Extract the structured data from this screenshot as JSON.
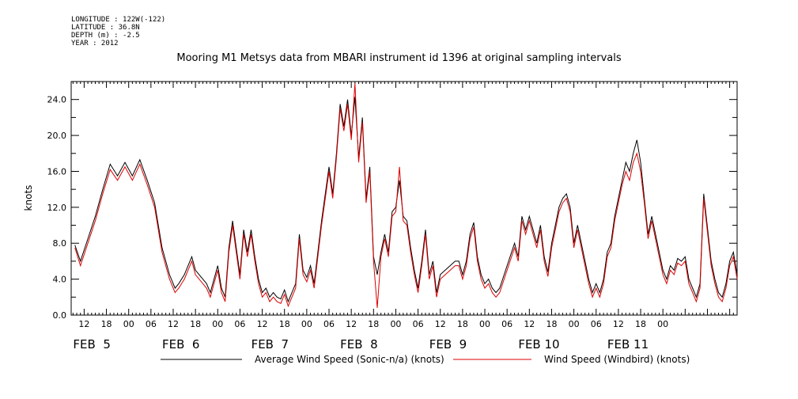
{
  "meta": {
    "longitude": "LONGITUDE : 122W(-122)",
    "latitude": "LATITUDE : 36.8N",
    "depth": "DEPTH (m) : -2.5",
    "year": "YEAR : 2012"
  },
  "chart_data": {
    "type": "line",
    "title": "Mooring M1 Metsys data from MBARI instrument id 1396 at original sampling intervals",
    "ylabel": "knots",
    "xlabel": "",
    "ylim": [
      0,
      26
    ],
    "xlim_hours": [
      -15.5,
      164
    ],
    "y_ticks": [
      "0.0",
      "4.0",
      "8.0",
      "12.0",
      "16.0",
      "20.0",
      "24.0"
    ],
    "hour_ticks": [
      "12",
      "18",
      "00",
      "06",
      "12",
      "18",
      "00",
      "06",
      "12",
      "18",
      "00",
      "06",
      "12",
      "18",
      "00",
      "06",
      "12",
      "18",
      "00",
      "06",
      "12",
      "18",
      "00",
      "06",
      "12",
      "18",
      "00"
    ],
    "day_labels": [
      "FEB  5",
      "FEB  6",
      "FEB  7",
      "FEB  8",
      "FEB  9",
      "FEB 10",
      "FEB 11"
    ],
    "legend_placement": "bottom",
    "series": [
      {
        "name": "Average Wind Speed (Sonic-n/a) (knots)",
        "color": "#000000",
        "points": [
          [
            -14.5,
            7.8
          ],
          [
            -13,
            6
          ],
          [
            -11,
            8.5
          ],
          [
            -9,
            11
          ],
          [
            -7,
            14
          ],
          [
            -5,
            16.8
          ],
          [
            -3,
            15.5
          ],
          [
            -1,
            17
          ],
          [
            1,
            15.5
          ],
          [
            3,
            17.3
          ],
          [
            5,
            15
          ],
          [
            7,
            12.5
          ],
          [
            9,
            7.5
          ],
          [
            11,
            4.5
          ],
          [
            12.5,
            3
          ],
          [
            13.5,
            3.5
          ],
          [
            15,
            4.5
          ],
          [
            17,
            6.5
          ],
          [
            18,
            5
          ],
          [
            20,
            4
          ],
          [
            21,
            3.5
          ],
          [
            22,
            2.5
          ],
          [
            23,
            4
          ],
          [
            24,
            5.5
          ],
          [
            25,
            3
          ],
          [
            26,
            2
          ],
          [
            27,
            7.5
          ],
          [
            28,
            10.5
          ],
          [
            29,
            7.5
          ],
          [
            30,
            4.5
          ],
          [
            31,
            9.5
          ],
          [
            32,
            7
          ],
          [
            33,
            9.5
          ],
          [
            34,
            6.5
          ],
          [
            35,
            4
          ],
          [
            36,
            2.5
          ],
          [
            37,
            3
          ],
          [
            38,
            2
          ],
          [
            39,
            2.5
          ],
          [
            40,
            2
          ],
          [
            41,
            1.8
          ],
          [
            42,
            2.8
          ],
          [
            43,
            1.5
          ],
          [
            44,
            2.5
          ],
          [
            45,
            3.5
          ],
          [
            46,
            9
          ],
          [
            47,
            5
          ],
          [
            48,
            4.2
          ],
          [
            49,
            5.5
          ],
          [
            50,
            3.5
          ],
          [
            51,
            7
          ],
          [
            52,
            10.5
          ],
          [
            53,
            13.5
          ],
          [
            54,
            16.5
          ],
          [
            55,
            13.5
          ],
          [
            56,
            18
          ],
          [
            57,
            23.5
          ],
          [
            58,
            21
          ],
          [
            59,
            24
          ],
          [
            60,
            20
          ],
          [
            61,
            24.3
          ],
          [
            62,
            17.5
          ],
          [
            63,
            22
          ],
          [
            64,
            13
          ],
          [
            65,
            16.5
          ],
          [
            66,
            6.5
          ],
          [
            67,
            4.5
          ],
          [
            68,
            7
          ],
          [
            69,
            9
          ],
          [
            70,
            7
          ],
          [
            71,
            11.5
          ],
          [
            72,
            12
          ],
          [
            73,
            15
          ],
          [
            74,
            11
          ],
          [
            75,
            10.5
          ],
          [
            76,
            7.5
          ],
          [
            77,
            5
          ],
          [
            78,
            3
          ],
          [
            79,
            6
          ],
          [
            80,
            9.5
          ],
          [
            81,
            4.5
          ],
          [
            82,
            6
          ],
          [
            83,
            2.5
          ],
          [
            84,
            4.5
          ],
          [
            88,
            6
          ],
          [
            89,
            6
          ],
          [
            90,
            4.5
          ],
          [
            91,
            6
          ],
          [
            92,
            9
          ],
          [
            93,
            10.3
          ],
          [
            94,
            6.5
          ],
          [
            95,
            4.5
          ],
          [
            96,
            3.5
          ],
          [
            97,
            4
          ],
          [
            98,
            3
          ],
          [
            99,
            2.5
          ],
          [
            100,
            3
          ],
          [
            104,
            8
          ],
          [
            105,
            6.5
          ],
          [
            106,
            11
          ],
          [
            107,
            9.5
          ],
          [
            108,
            11
          ],
          [
            109,
            9.5
          ],
          [
            110,
            8
          ],
          [
            111,
            10
          ],
          [
            112,
            6.5
          ],
          [
            113,
            4.8
          ],
          [
            114,
            8
          ],
          [
            115,
            10
          ],
          [
            116,
            12
          ],
          [
            117,
            13
          ],
          [
            118,
            13.5
          ],
          [
            119,
            12
          ],
          [
            120,
            8
          ],
          [
            121,
            10
          ],
          [
            122,
            8
          ],
          [
            123,
            6
          ],
          [
            124,
            4
          ],
          [
            125,
            2.5
          ],
          [
            126,
            3.5
          ],
          [
            127,
            2.5
          ],
          [
            128,
            4
          ],
          [
            129,
            7
          ],
          [
            130,
            8
          ],
          [
            131,
            11
          ],
          [
            132,
            13
          ],
          [
            133,
            15
          ],
          [
            134,
            17
          ],
          [
            135,
            16
          ],
          [
            136,
            18
          ],
          [
            137,
            19.5
          ],
          [
            138,
            17
          ],
          [
            139,
            13
          ],
          [
            140,
            9
          ],
          [
            141,
            11
          ],
          [
            142,
            9
          ],
          [
            143,
            7
          ],
          [
            144,
            5
          ],
          [
            145,
            4
          ],
          [
            146,
            5.5
          ],
          [
            147,
            5
          ],
          [
            148,
            6.3
          ],
          [
            149,
            6
          ],
          [
            150,
            6.5
          ],
          [
            151,
            4
          ],
          [
            152,
            3
          ],
          [
            153,
            2
          ],
          [
            154,
            3.5
          ],
          [
            155,
            13.5
          ],
          [
            157,
            6
          ],
          [
            158,
            4
          ],
          [
            159,
            2.5
          ],
          [
            160,
            2
          ],
          [
            161,
            3.5
          ],
          [
            162,
            6
          ],
          [
            163,
            7
          ],
          [
            164,
            4.5
          ]
        ]
      },
      {
        "name": "Wind Speed (Windbird) (knots)",
        "color": "#dd0000",
        "points": [
          [
            -14.5,
            7.5
          ],
          [
            -13,
            5.5
          ],
          [
            -11,
            8
          ],
          [
            -9,
            10.5
          ],
          [
            -7,
            13.5
          ],
          [
            -5,
            16.2
          ],
          [
            -3,
            15
          ],
          [
            -1,
            16.5
          ],
          [
            1,
            15
          ],
          [
            3,
            16.8
          ],
          [
            5,
            14.5
          ],
          [
            7,
            12
          ],
          [
            9,
            7
          ],
          [
            11,
            4
          ],
          [
            12.5,
            2.5
          ],
          [
            13.5,
            3
          ],
          [
            15,
            4
          ],
          [
            17,
            6
          ],
          [
            18,
            4.5
          ],
          [
            20,
            3.5
          ],
          [
            21,
            3
          ],
          [
            22,
            2
          ],
          [
            23,
            3.5
          ],
          [
            24,
            5
          ],
          [
            25,
            2.5
          ],
          [
            26,
            1.5
          ],
          [
            27,
            7
          ],
          [
            28,
            10
          ],
          [
            29,
            7
          ],
          [
            30,
            4
          ],
          [
            31,
            9
          ],
          [
            32,
            6.5
          ],
          [
            33,
            9
          ],
          [
            34,
            6
          ],
          [
            35,
            3.5
          ],
          [
            36,
            2
          ],
          [
            37,
            2.5
          ],
          [
            38,
            1.5
          ],
          [
            39,
            2
          ],
          [
            40,
            1.5
          ],
          [
            41,
            1.3
          ],
          [
            42,
            2.3
          ],
          [
            43,
            1
          ],
          [
            44,
            2
          ],
          [
            45,
            3
          ],
          [
            46,
            8.5
          ],
          [
            47,
            4.5
          ],
          [
            48,
            3.7
          ],
          [
            49,
            5
          ],
          [
            50,
            3
          ],
          [
            51,
            6.5
          ],
          [
            52,
            10
          ],
          [
            53,
            13
          ],
          [
            54,
            16
          ],
          [
            55,
            13
          ],
          [
            56,
            17.5
          ],
          [
            57,
            23
          ],
          [
            58,
            20.5
          ],
          [
            59,
            23.5
          ],
          [
            60,
            19.5
          ],
          [
            61,
            25.8
          ],
          [
            62,
            17
          ],
          [
            63,
            21.5
          ],
          [
            64,
            12.5
          ],
          [
            65,
            16
          ],
          [
            66,
            6
          ],
          [
            67,
            0.8
          ],
          [
            68,
            6.5
          ],
          [
            69,
            8.5
          ],
          [
            70,
            6.5
          ],
          [
            71,
            11
          ],
          [
            72,
            11.5
          ],
          [
            73,
            16.5
          ],
          [
            74,
            10.5
          ],
          [
            75,
            10
          ],
          [
            76,
            7
          ],
          [
            77,
            4.5
          ],
          [
            78,
            2.5
          ],
          [
            79,
            5.5
          ],
          [
            80,
            9
          ],
          [
            81,
            4
          ],
          [
            82,
            5.5
          ],
          [
            83,
            2
          ],
          [
            84,
            4
          ],
          [
            88,
            5.5
          ],
          [
            89,
            5.5
          ],
          [
            90,
            4
          ],
          [
            91,
            5.5
          ],
          [
            92,
            8.5
          ],
          [
            93,
            9.8
          ],
          [
            94,
            6
          ],
          [
            95,
            4
          ],
          [
            96,
            3
          ],
          [
            97,
            3.5
          ],
          [
            98,
            2.5
          ],
          [
            99,
            2
          ],
          [
            100,
            2.5
          ],
          [
            104,
            7.5
          ],
          [
            105,
            6
          ],
          [
            106,
            10.5
          ],
          [
            107,
            9
          ],
          [
            108,
            10.5
          ],
          [
            109,
            9
          ],
          [
            110,
            7.5
          ],
          [
            111,
            9.5
          ],
          [
            112,
            6
          ],
          [
            113,
            4.3
          ],
          [
            114,
            7.5
          ],
          [
            115,
            9.5
          ],
          [
            116,
            11.5
          ],
          [
            117,
            12.5
          ],
          [
            118,
            13
          ],
          [
            119,
            11.5
          ],
          [
            120,
            7.5
          ],
          [
            121,
            9.5
          ],
          [
            122,
            7.5
          ],
          [
            123,
            5.5
          ],
          [
            124,
            3.5
          ],
          [
            125,
            2
          ],
          [
            126,
            3
          ],
          [
            127,
            2
          ],
          [
            128,
            3.5
          ],
          [
            129,
            6.5
          ],
          [
            130,
            7.5
          ],
          [
            131,
            10.5
          ],
          [
            132,
            12.5
          ],
          [
            133,
            14.5
          ],
          [
            134,
            16
          ],
          [
            135,
            15
          ],
          [
            136,
            17
          ],
          [
            137,
            18
          ],
          [
            138,
            16
          ],
          [
            139,
            12.5
          ],
          [
            140,
            8.5
          ],
          [
            141,
            10.5
          ],
          [
            142,
            8.5
          ],
          [
            143,
            6.5
          ],
          [
            144,
            4.5
          ],
          [
            145,
            3.5
          ],
          [
            146,
            5
          ],
          [
            147,
            4.5
          ],
          [
            148,
            5.8
          ],
          [
            149,
            5.5
          ],
          [
            150,
            6
          ],
          [
            151,
            3.5
          ],
          [
            152,
            2.5
          ],
          [
            153,
            1.5
          ],
          [
            154,
            3
          ],
          [
            155,
            13
          ],
          [
            157,
            5.5
          ],
          [
            158,
            3.5
          ],
          [
            159,
            2
          ],
          [
            160,
            1.5
          ],
          [
            161,
            3
          ],
          [
            162,
            5.5
          ],
          [
            163,
            6.5
          ],
          [
            164,
            4
          ]
        ]
      }
    ]
  }
}
